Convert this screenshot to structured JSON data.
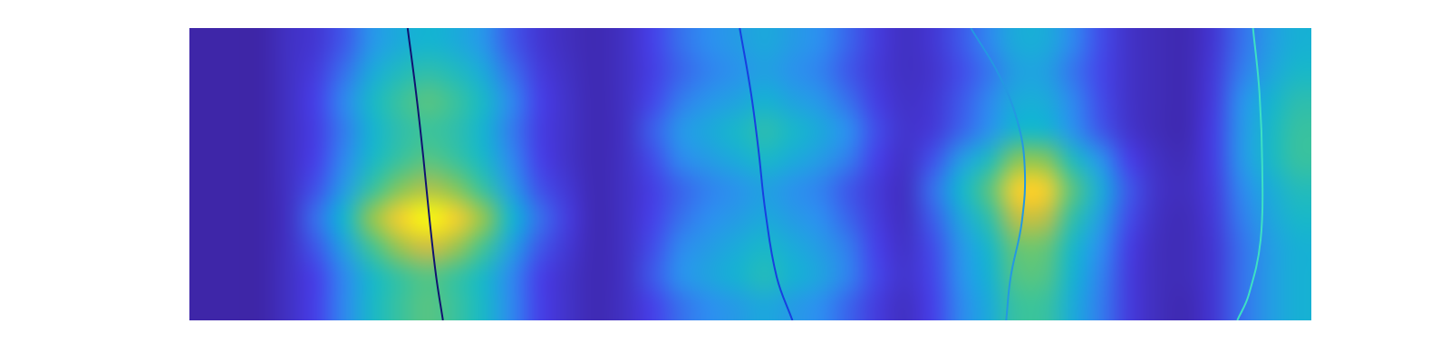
{
  "chart_data": {
    "type": "heatmap",
    "xlim": [
      0,
      40
    ],
    "ylim": [
      0,
      10
    ],
    "zlim": [
      0,
      1
    ],
    "tick_labels": false,
    "grid": false,
    "x": [
      0.5,
      1.5,
      2.5,
      3.5,
      4.5,
      5.5,
      6.5,
      7.5,
      8.5,
      9.5,
      10.5,
      11.5,
      12.5,
      13.5,
      14.5,
      15.5,
      16.5,
      17.5,
      18.5,
      19.5,
      20.5,
      21.5,
      22.5,
      23.5,
      24.5,
      25.5,
      26.5,
      27.5,
      28.5,
      29.5,
      30.5,
      31.5,
      32.5,
      33.5,
      34.5,
      35.5,
      36.5,
      37.5,
      38.5,
      39.5
    ],
    "y": [
      9.5,
      8.5,
      7.5,
      6.5,
      5.5,
      4.5,
      3.5,
      2.5,
      1.5,
      0.5
    ],
    "z": [
      [
        0,
        0,
        0,
        0.05,
        0.08,
        0.16,
        0.28,
        0.36,
        0.4,
        0.36,
        0.28,
        0.16,
        0.08,
        0.04,
        0.02,
        0.05,
        0.12,
        0.2,
        0.25,
        0.3,
        0.35,
        0.3,
        0.25,
        0.18,
        0.1,
        0.05,
        0.08,
        0.16,
        0.24,
        0.36,
        0.36,
        0.24,
        0.14,
        0.06,
        0.03,
        0.02,
        0.08,
        0.2,
        0.3,
        0.38
      ],
      [
        0,
        0,
        0,
        0.05,
        0.1,
        0.2,
        0.35,
        0.45,
        0.5,
        0.45,
        0.35,
        0.2,
        0.1,
        0.05,
        0.02,
        0.05,
        0.11,
        0.18,
        0.23,
        0.27,
        0.32,
        0.27,
        0.23,
        0.16,
        0.09,
        0.05,
        0.07,
        0.14,
        0.21,
        0.32,
        0.32,
        0.21,
        0.13,
        0.06,
        0.03,
        0.02,
        0.09,
        0.22,
        0.33,
        0.42
      ],
      [
        0,
        0,
        0,
        0.05,
        0.12,
        0.24,
        0.42,
        0.54,
        0.6,
        0.54,
        0.42,
        0.24,
        0.12,
        0.06,
        0.02,
        0.05,
        0.13,
        0.22,
        0.28,
        0.33,
        0.39,
        0.33,
        0.28,
        0.2,
        0.11,
        0.06,
        0.08,
        0.16,
        0.24,
        0.36,
        0.36,
        0.24,
        0.14,
        0.06,
        0.03,
        0.02,
        0.1,
        0.26,
        0.39,
        0.49
      ],
      [
        0,
        0,
        0,
        0.05,
        0.11,
        0.22,
        0.39,
        0.5,
        0.55,
        0.5,
        0.39,
        0.22,
        0.11,
        0.06,
        0.02,
        0.05,
        0.17,
        0.28,
        0.35,
        0.42,
        0.49,
        0.42,
        0.35,
        0.25,
        0.14,
        0.07,
        0.09,
        0.18,
        0.27,
        0.41,
        0.41,
        0.27,
        0.16,
        0.07,
        0.03,
        0.02,
        0.11,
        0.28,
        0.42,
        0.53
      ],
      [
        0,
        0,
        0,
        0.05,
        0.12,
        0.24,
        0.42,
        0.54,
        0.6,
        0.54,
        0.42,
        0.24,
        0.12,
        0.06,
        0.02,
        0.05,
        0.14,
        0.24,
        0.3,
        0.36,
        0.42,
        0.36,
        0.3,
        0.22,
        0.12,
        0.06,
        0.15,
        0.3,
        0.45,
        0.68,
        0.68,
        0.45,
        0.27,
        0.12,
        0.05,
        0.03,
        0.11,
        0.28,
        0.42,
        0.53
      ],
      [
        0,
        0,
        0,
        0.05,
        0.15,
        0.3,
        0.53,
        0.68,
        0.75,
        0.68,
        0.53,
        0.3,
        0.15,
        0.08,
        0.02,
        0.05,
        0.11,
        0.18,
        0.23,
        0.27,
        0.32,
        0.27,
        0.23,
        0.16,
        0.09,
        0.05,
        0.2,
        0.4,
        0.6,
        0.9,
        0.9,
        0.6,
        0.36,
        0.16,
        0.06,
        0.04,
        0.1,
        0.24,
        0.36,
        0.46
      ],
      [
        0,
        0,
        0,
        0.05,
        0.2,
        0.4,
        0.7,
        0.9,
        1,
        0.9,
        0.7,
        0.4,
        0.2,
        0.1,
        0.02,
        0.05,
        0.12,
        0.2,
        0.25,
        0.3,
        0.35,
        0.3,
        0.25,
        0.18,
        0.1,
        0.05,
        0.17,
        0.34,
        0.51,
        0.77,
        0.77,
        0.51,
        0.31,
        0.14,
        0.05,
        0.03,
        0.09,
        0.22,
        0.33,
        0.42
      ],
      [
        0,
        0,
        0,
        0.05,
        0.16,
        0.32,
        0.56,
        0.72,
        0.8,
        0.72,
        0.56,
        0.32,
        0.16,
        0.08,
        0.02,
        0.05,
        0.14,
        0.24,
        0.3,
        0.36,
        0.42,
        0.36,
        0.3,
        0.22,
        0.12,
        0.06,
        0.14,
        0.28,
        0.42,
        0.63,
        0.63,
        0.42,
        0.25,
        0.11,
        0.04,
        0.03,
        0.08,
        0.2,
        0.3,
        0.38
      ],
      [
        0,
        0,
        0,
        0.05,
        0.12,
        0.24,
        0.42,
        0.54,
        0.6,
        0.54,
        0.42,
        0.24,
        0.12,
        0.06,
        0.02,
        0.05,
        0.16,
        0.26,
        0.33,
        0.39,
        0.46,
        0.39,
        0.33,
        0.23,
        0.13,
        0.07,
        0.13,
        0.26,
        0.39,
        0.59,
        0.59,
        0.39,
        0.23,
        0.1,
        0.04,
        0.03,
        0.08,
        0.2,
        0.3,
        0.38
      ],
      [
        0,
        0,
        0,
        0.05,
        0.12,
        0.24,
        0.42,
        0.54,
        0.6,
        0.54,
        0.42,
        0.24,
        0.12,
        0.06,
        0.02,
        0.05,
        0.12,
        0.2,
        0.25,
        0.3,
        0.35,
        0.3,
        0.25,
        0.18,
        0.1,
        0.05,
        0.12,
        0.24,
        0.36,
        0.54,
        0.54,
        0.36,
        0.22,
        0.1,
        0.04,
        0.02,
        0.08,
        0.2,
        0.3,
        0.38
      ]
    ],
    "series": [
      {
        "type": "line",
        "color": "#101270",
        "x": [
          7.78,
          8.08,
          8.34,
          8.57,
          8.8,
          9.04
        ],
        "y": [
          10,
          7.79,
          5.58,
          3.38,
          1.48,
          0
        ]
      },
      {
        "type": "line",
        "color": "#1740e0",
        "x": [
          19.62,
          20.02,
          20.28,
          20.54,
          20.94,
          21.5
        ],
        "y": [
          10,
          7.79,
          5.9,
          3.69,
          1.48,
          0
        ]
      },
      {
        "type": "line",
        "color": "#2498e2",
        "x": [
          27.86,
          28.85,
          29.51,
          29.78,
          29.68,
          29.28,
          29.12
        ],
        "y": [
          10,
          8.42,
          6.85,
          5.27,
          3.38,
          1.48,
          0
        ]
      },
      {
        "type": "line",
        "color": "#3de0c4",
        "x": [
          37.92,
          38.15,
          38.25,
          38.19,
          37.76,
          37.36
        ],
        "y": [
          10,
          7.79,
          5.27,
          2.74,
          0.85,
          0
        ]
      }
    ]
  }
}
